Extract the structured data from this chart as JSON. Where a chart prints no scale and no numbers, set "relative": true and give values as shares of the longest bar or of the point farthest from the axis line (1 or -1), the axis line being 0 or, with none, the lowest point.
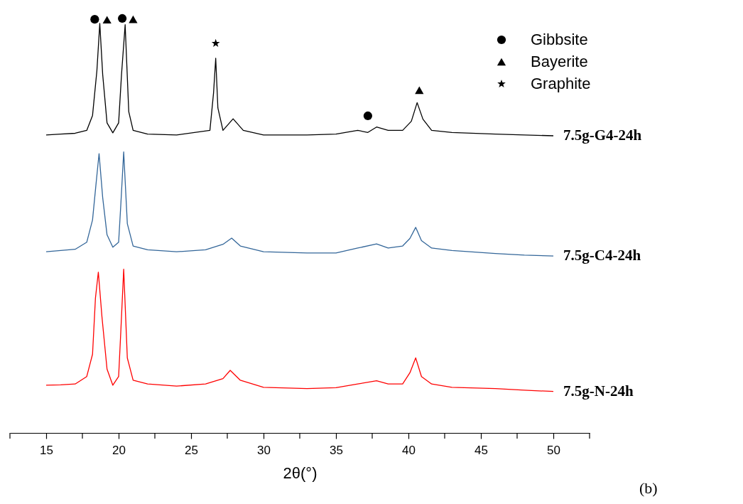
{
  "chart_data": {
    "type": "line",
    "relative": true,
    "xlabel": "2θ(°)",
    "xlim": [
      12.5,
      52.5
    ],
    "xticks": [
      {
        "value": 12.5,
        "label": null
      },
      15,
      {
        "value": 17.5,
        "label": null
      },
      20,
      {
        "value": 22.5,
        "label": null
      },
      25,
      {
        "value": 27.5,
        "label": null
      },
      30,
      {
        "value": 32.5,
        "label": null
      },
      35,
      {
        "value": 37.5,
        "label": null
      },
      40,
      {
        "value": 42.5,
        "label": null
      },
      45,
      {
        "value": 47.5,
        "label": null
      },
      50,
      {
        "value": 52.5,
        "label": null
      }
    ],
    "tick_labels": "x",
    "grid": false,
    "legend": "top right",
    "line_style": "solid",
    "marker": "none",
    "annotations": [
      "(b)"
    ],
    "series": [
      {
        "name": "7.5g-G4-24h",
        "color": "#000000",
        "x": [
          15,
          16,
          17,
          17.8,
          18.2,
          18.5,
          18.7,
          18.9,
          19.2,
          19.6,
          20.0,
          20.2,
          20.45,
          20.7,
          21.0,
          22,
          24,
          26.3,
          26.55,
          26.7,
          26.85,
          27.2,
          27.9,
          28.6,
          30,
          33,
          35,
          36.5,
          37.2,
          37.8,
          38.6,
          39.6,
          40.2,
          40.6,
          41.0,
          41.6,
          43,
          46,
          48,
          50
        ],
        "values": [
          0.719,
          0.721,
          0.723,
          0.73,
          0.766,
          0.874,
          0.988,
          0.865,
          0.748,
          0.724,
          0.748,
          0.865,
          0.985,
          0.775,
          0.73,
          0.721,
          0.719,
          0.73,
          0.82,
          0.904,
          0.784,
          0.73,
          0.758,
          0.73,
          0.719,
          0.719,
          0.721,
          0.73,
          0.725,
          0.738,
          0.73,
          0.73,
          0.752,
          0.797,
          0.757,
          0.73,
          0.725,
          0.721,
          0.719,
          0.717
        ]
      },
      {
        "name": "7.5g-C4-24h",
        "color": "#336699",
        "x": [
          15,
          16,
          17,
          17.8,
          18.2,
          18.45,
          18.65,
          18.9,
          19.2,
          19.6,
          20.0,
          20.15,
          20.35,
          20.6,
          21.0,
          22,
          24,
          26,
          27.2,
          27.8,
          28.4,
          30,
          33,
          35,
          36.5,
          37.8,
          38.6,
          39.6,
          40.1,
          40.5,
          40.9,
          41.6,
          43,
          46,
          48,
          50
        ],
        "values": [
          0.437,
          0.44,
          0.443,
          0.46,
          0.514,
          0.604,
          0.674,
          0.568,
          0.478,
          0.448,
          0.46,
          0.55,
          0.678,
          0.505,
          0.451,
          0.442,
          0.437,
          0.442,
          0.455,
          0.47,
          0.451,
          0.437,
          0.434,
          0.434,
          0.446,
          0.456,
          0.446,
          0.451,
          0.469,
          0.496,
          0.464,
          0.446,
          0.44,
          0.433,
          0.429,
          0.427
        ]
      },
      {
        "name": "7.5g-N-24h",
        "color": "#ff0000",
        "x": [
          15,
          16,
          17,
          17.8,
          18.2,
          18.4,
          18.6,
          18.85,
          19.2,
          19.6,
          20.0,
          20.15,
          20.35,
          20.6,
          21.0,
          22,
          24,
          26,
          27.2,
          27.7,
          28.4,
          30,
          33,
          35,
          36.5,
          37.8,
          38.6,
          39.6,
          40.1,
          40.5,
          40.9,
          41.6,
          43,
          46,
          48,
          50
        ],
        "values": [
          0.115,
          0.116,
          0.118,
          0.136,
          0.19,
          0.325,
          0.388,
          0.28,
          0.154,
          0.115,
          0.136,
          0.244,
          0.395,
          0.181,
          0.127,
          0.118,
          0.113,
          0.118,
          0.131,
          0.151,
          0.127,
          0.11,
          0.107,
          0.109,
          0.118,
          0.126,
          0.118,
          0.118,
          0.145,
          0.181,
          0.136,
          0.118,
          0.11,
          0.107,
          0.103,
          0.1
        ]
      },
      {
        "name": "Gibbsite",
        "type": "scatter",
        "marker": "circle",
        "color": "#000000",
        "x": [
          18.35,
          20.25,
          37.2
        ],
        "values": [
          0.998,
          1.0,
          0.765
        ]
      },
      {
        "name": "Bayerite",
        "type": "scatter",
        "marker": "triangle",
        "color": "#000000",
        "x": [
          19.2,
          21.0,
          40.75
        ],
        "values": [
          0.997,
          0.998,
          0.827
        ]
      },
      {
        "name": "Graphite",
        "type": "scatter",
        "marker": "star",
        "color": "#000000",
        "x": [
          26.7
        ],
        "values": [
          0.94
        ]
      }
    ]
  }
}
